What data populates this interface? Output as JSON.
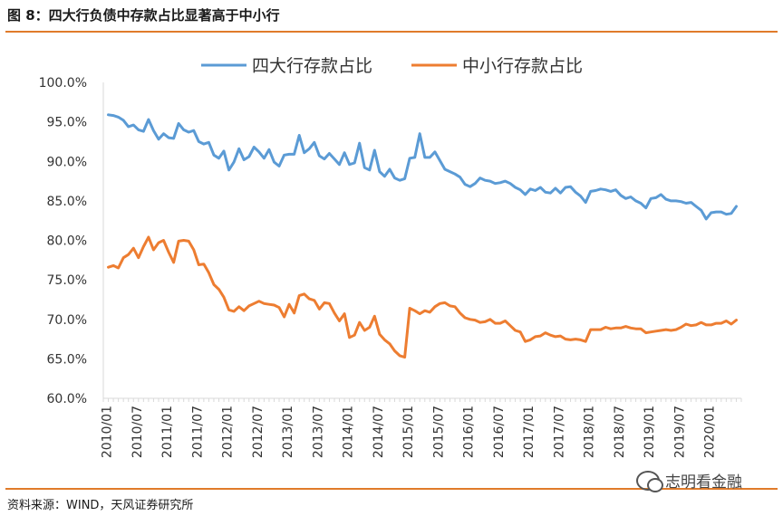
{
  "figure": {
    "title": "图 8：四大行负债中存款占比显著高于中小行",
    "source": "资料来源：WIND，天风证券研究所",
    "watermark": "志明看金融"
  },
  "colors": {
    "accent_rule": "#e07b2a",
    "series_big4": "#5b9bd5",
    "series_small": "#ed7d31",
    "axis": "#d9d9d9"
  },
  "chart_data": {
    "type": "line",
    "title": "",
    "xlabel": "",
    "ylabel": "",
    "ylim": [
      60,
      100
    ],
    "y_ticks": [
      "60.0%",
      "65.0%",
      "70.0%",
      "75.0%",
      "80.0%",
      "85.0%",
      "90.0%",
      "95.0%",
      "100.0%"
    ],
    "x_ticks": [
      "2010/01",
      "2010/07",
      "2011/01",
      "2011/07",
      "2012/01",
      "2012/07",
      "2013/01",
      "2013/07",
      "2014/01",
      "2014/07",
      "2015/01",
      "2015/07",
      "2016/01",
      "2016/07",
      "2017/01",
      "2017/07",
      "2018/01",
      "2018/07",
      "2019/01",
      "2019/07",
      "2020/01"
    ],
    "x_start": "2010/01",
    "x_frequency": "monthly",
    "legend_position": "top",
    "grid": false,
    "series": [
      {
        "name": "四大行存款占比",
        "values": [
          95.9,
          95.8,
          95.6,
          95.2,
          94.4,
          94.6,
          94.0,
          93.8,
          95.3,
          93.9,
          92.8,
          93.5,
          93.0,
          92.9,
          94.8,
          94.0,
          93.7,
          93.9,
          92.5,
          92.2,
          92.4,
          90.8,
          90.4,
          91.3,
          88.9,
          89.9,
          91.6,
          90.2,
          90.6,
          91.8,
          91.2,
          90.4,
          91.5,
          89.9,
          89.4,
          90.8,
          90.9,
          90.9,
          93.3,
          91.1,
          91.6,
          92.4,
          90.7,
          90.3,
          91.0,
          90.3,
          89.6,
          91.1,
          89.6,
          89.8,
          92.3,
          89.2,
          88.9,
          91.4,
          88.7,
          88.1,
          89.0,
          87.9,
          87.6,
          87.8,
          90.4,
          90.5,
          93.5,
          90.5,
          90.5,
          91.2,
          90.1,
          89.0,
          88.7,
          88.4,
          88.0,
          87.1,
          86.8,
          87.2,
          87.9,
          87.6,
          87.5,
          87.2,
          87.3,
          87.5,
          87.2,
          86.7,
          86.4,
          85.8,
          86.5,
          86.3,
          86.7,
          86.1,
          86.0,
          86.6,
          86.0,
          86.7,
          86.8,
          86.1,
          85.6,
          84.8,
          86.2,
          86.3,
          86.5,
          86.4,
          86.2,
          86.4,
          85.7,
          85.3,
          85.5,
          85.0,
          84.7,
          84.1,
          85.3,
          85.4,
          85.8,
          85.2,
          85.0,
          85.0,
          84.9,
          84.7,
          84.8,
          84.3,
          83.8,
          82.7,
          83.5,
          83.6,
          83.6,
          83.3,
          83.4,
          84.3
        ]
      },
      {
        "name": "中小行存款占比",
        "values": [
          76.6,
          76.8,
          76.5,
          77.8,
          78.2,
          79.0,
          77.8,
          79.2,
          80.4,
          78.8,
          79.7,
          80.0,
          78.5,
          77.2,
          79.9,
          80.0,
          79.9,
          78.8,
          76.9,
          77.0,
          75.9,
          74.4,
          73.8,
          72.8,
          71.2,
          71.0,
          71.6,
          71.1,
          71.7,
          72.0,
          72.3,
          72.0,
          71.9,
          71.8,
          71.5,
          70.3,
          71.9,
          70.8,
          73.0,
          73.2,
          72.6,
          72.4,
          71.3,
          72.1,
          72.0,
          70.8,
          69.8,
          70.7,
          67.7,
          68.0,
          69.6,
          68.6,
          69.0,
          70.4,
          68.1,
          67.4,
          66.9,
          66.0,
          65.4,
          65.2,
          71.4,
          71.1,
          70.7,
          71.1,
          70.9,
          71.6,
          72.0,
          72.1,
          71.7,
          71.6,
          70.8,
          70.2,
          70.0,
          69.9,
          69.6,
          69.7,
          70.0,
          69.5,
          69.5,
          69.8,
          69.2,
          68.6,
          68.4,
          67.2,
          67.4,
          67.8,
          67.9,
          68.3,
          68.0,
          67.8,
          67.9,
          67.5,
          67.4,
          67.5,
          67.4,
          67.2,
          68.7,
          68.7,
          68.7,
          69.0,
          68.8,
          68.9,
          68.9,
          69.1,
          68.9,
          68.8,
          68.8,
          68.3,
          68.4,
          68.5,
          68.6,
          68.7,
          68.6,
          68.7,
          69.0,
          69.4,
          69.2,
          69.3,
          69.6,
          69.3,
          69.3,
          69.5,
          69.5,
          69.8,
          69.4,
          69.9
        ]
      }
    ]
  }
}
